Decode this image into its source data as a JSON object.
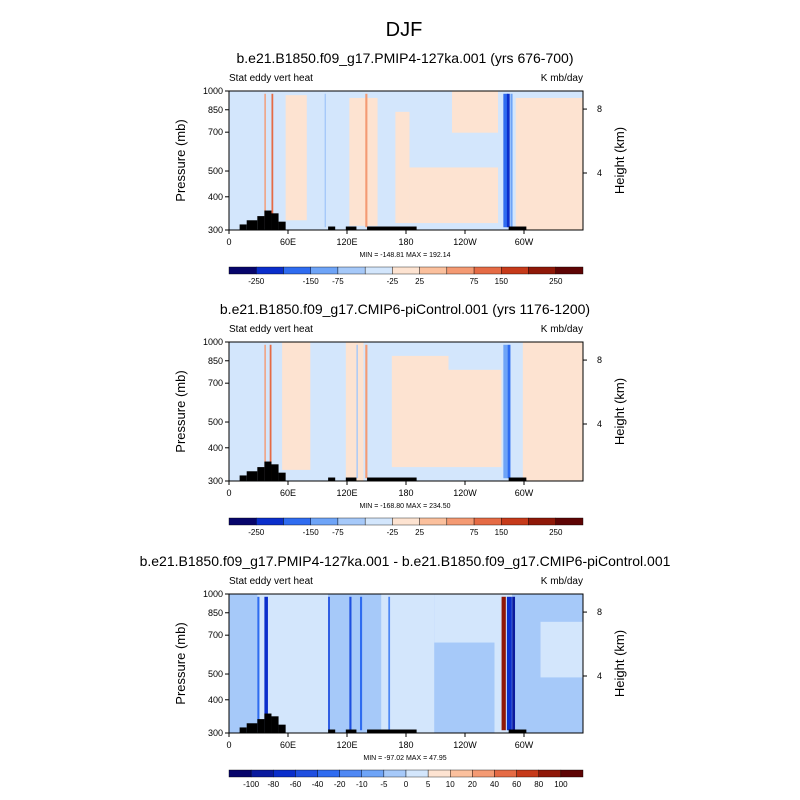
{
  "figure_title": "DJF",
  "colors": {
    "fill_text": "#000000",
    "terrain": "#000000"
  },
  "chart_data": [
    {
      "type": "heatmap",
      "title": "b.e21.B1850.f09_g17.PMIP4-127ka.001 (yrs 676-700)",
      "left_label": "Stat eddy vert heat",
      "right_label": "K mb/day",
      "ylabel": "Pressure (mb)",
      "y2label": "Height (km)",
      "x_ticks": [
        "0",
        "60E",
        "120E",
        "180",
        "120W",
        "60W"
      ],
      "y_ticks": [
        "300",
        "400",
        "500",
        "700",
        "850",
        "1000"
      ],
      "y2_ticks": [
        "8",
        "4"
      ],
      "stats": "MIN = -148.81   MAX = 192.14",
      "colorbar_labels": [
        "-250",
        "-150",
        "-75",
        "-25",
        "25",
        "75",
        "150",
        "250"
      ],
      "colorbar_colors": [
        "#07056b",
        "#0a2ecb",
        "#2f6cf0",
        "#6ea4f7",
        "#a6c9f9",
        "#d3e6fc",
        "#fde3d1",
        "#fbc09d",
        "#f49a73",
        "#e56b45",
        "#c63a1a",
        "#8f1808",
        "#5e0404"
      ]
    },
    {
      "type": "heatmap",
      "title": "b.e21.B1850.f09_g17.CMIP6-piControl.001 (yrs 1176-1200)",
      "left_label": "Stat eddy vert heat",
      "right_label": "K mb/day",
      "ylabel": "Pressure (mb)",
      "y2label": "Height (km)",
      "x_ticks": [
        "0",
        "60E",
        "120E",
        "180",
        "120W",
        "60W"
      ],
      "y_ticks": [
        "300",
        "400",
        "500",
        "700",
        "850",
        "1000"
      ],
      "y2_ticks": [
        "8",
        "4"
      ],
      "stats": "MIN = -168.80   MAX = 234.50",
      "colorbar_labels": [
        "-250",
        "-150",
        "-75",
        "-25",
        "25",
        "75",
        "150",
        "250"
      ],
      "colorbar_colors": [
        "#07056b",
        "#0a2ecb",
        "#2f6cf0",
        "#6ea4f7",
        "#a6c9f9",
        "#d3e6fc",
        "#fde3d1",
        "#fbc09d",
        "#f49a73",
        "#e56b45",
        "#c63a1a",
        "#8f1808",
        "#5e0404"
      ]
    },
    {
      "type": "heatmap",
      "title": "b.e21.B1850.f09_g17.PMIP4-127ka.001 - b.e21.B1850.f09_g17.CMIP6-piControl.001",
      "left_label": "Stat eddy vert heat",
      "right_label": "K mb/day",
      "ylabel": "Pressure (mb)",
      "y2label": "Height (km)",
      "x_ticks": [
        "0",
        "60E",
        "120E",
        "180",
        "120W",
        "60W"
      ],
      "y_ticks": [
        "300",
        "400",
        "500",
        "700",
        "850",
        "1000"
      ],
      "y2_ticks": [
        "8",
        "4"
      ],
      "stats": "MIN = -97.02   MAX = 47.95",
      "colorbar_labels": [
        "-100",
        "-80",
        "-60",
        "-40",
        "-20",
        "-10",
        "-5",
        "0",
        "5",
        "10",
        "20",
        "40",
        "60",
        "80",
        "100"
      ],
      "colorbar_colors": [
        "#07056b",
        "#0a1a9e",
        "#0a2ecb",
        "#1f4fe0",
        "#2f6cf0",
        "#4f88f4",
        "#6ea4f7",
        "#a6c9f9",
        "#d3e6fc",
        "#fde3d1",
        "#fbc09d",
        "#f49a73",
        "#e56b45",
        "#c63a1a",
        "#8f1808",
        "#5e0404"
      ]
    }
  ]
}
